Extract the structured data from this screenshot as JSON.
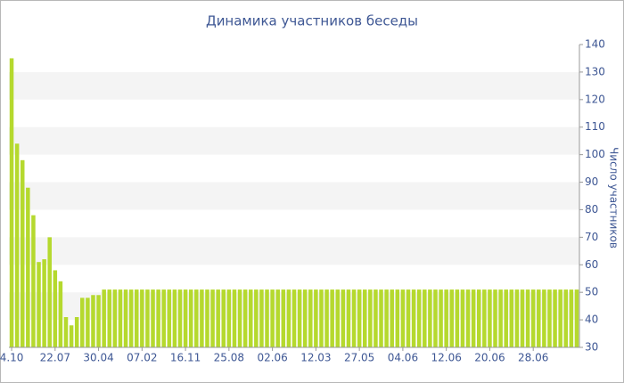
{
  "chart_data": {
    "type": "bar",
    "title": "Динамика участников беседы",
    "y_label": "Число участников",
    "categories": [
      "4.10",
      null,
      null,
      null,
      null,
      null,
      null,
      null,
      "22.07",
      null,
      null,
      null,
      null,
      null,
      null,
      null,
      "30.04",
      null,
      null,
      null,
      null,
      null,
      null,
      null,
      "07.02",
      null,
      null,
      null,
      null,
      null,
      null,
      null,
      "16.11",
      null,
      null,
      null,
      null,
      null,
      null,
      null,
      "25.08",
      null,
      null,
      null,
      null,
      null,
      null,
      null,
      "02.06",
      null,
      null,
      null,
      null,
      null,
      null,
      null,
      "12.03",
      null,
      null,
      null,
      null,
      null,
      null,
      null,
      "27.05",
      null,
      null,
      null,
      null,
      null,
      null,
      null,
      "04.06",
      null,
      null,
      null,
      null,
      null,
      null,
      null,
      "12.06",
      null,
      null,
      null,
      null,
      null,
      null,
      null,
      "20.06",
      null,
      null,
      null,
      null,
      null,
      null,
      null,
      "28.06",
      null,
      null,
      null,
      null,
      null,
      null,
      null,
      null
    ],
    "values": [
      135,
      104,
      98,
      88,
      78,
      61,
      62,
      70,
      58,
      54,
      41,
      38,
      41,
      48,
      48,
      49,
      49,
      51,
      51,
      51,
      51,
      51,
      51,
      51,
      51,
      51,
      51,
      51,
      51,
      51,
      51,
      51,
      51,
      51,
      51,
      51,
      51,
      51,
      51,
      51,
      51,
      51,
      51,
      51,
      51,
      51,
      51,
      51,
      51,
      51,
      51,
      51,
      51,
      51,
      51,
      51,
      51,
      51,
      51,
      51,
      51,
      51,
      51,
      51,
      51,
      51,
      51,
      51,
      51,
      51,
      51,
      51,
      51,
      51,
      51,
      51,
      51,
      51,
      51,
      51,
      51,
      51,
      51,
      51,
      51,
      51,
      51,
      51,
      51,
      51,
      51,
      51,
      51,
      51,
      51,
      51,
      51,
      51,
      51,
      51,
      51,
      51,
      51,
      51,
      51
    ],
    "color": "#b5d92e",
    "band_color": "#f4f4f4",
    "ylim": [
      30,
      140
    ],
    "yticks": [
      30,
      40,
      50,
      60,
      70,
      80,
      90,
      100,
      110,
      120,
      130,
      140
    ],
    "y_axis_side": "right"
  }
}
